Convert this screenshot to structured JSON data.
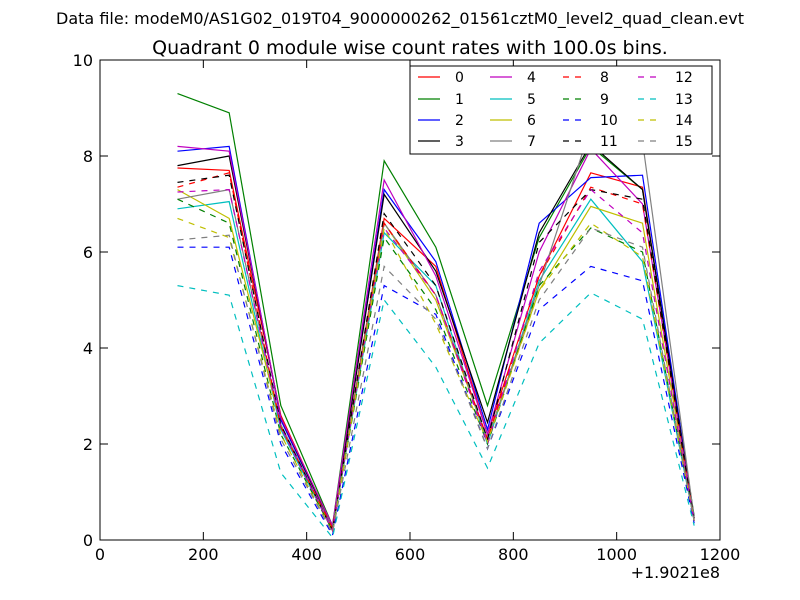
{
  "chart_data": {
    "type": "line",
    "suptitle": "Data file: modeM0/AS1G02_019T04_9000000262_01561cztM0_level2_quad_clean.evt",
    "title": "Quadrant 0 module wise count rates with 100.0s bins.",
    "xlabel": "",
    "ylabel": "",
    "x_offset_label": "+1.9021e8",
    "xlim": [
      0,
      1200
    ],
    "ylim": [
      0,
      10
    ],
    "xticks": [
      "0",
      "200",
      "400",
      "600",
      "800",
      "1000",
      "1200"
    ],
    "yticks": [
      "0",
      "2",
      "4",
      "6",
      "8",
      "10"
    ],
    "grid": false,
    "legend_position": "top-right",
    "x": [
      150,
      250,
      350,
      450,
      550,
      650,
      750,
      850,
      950,
      1050,
      1150
    ],
    "series": [
      {
        "name": "0",
        "color": "#ff0000",
        "style": "solid",
        "values": [
          7.75,
          7.7,
          2.6,
          0.25,
          6.7,
          5.7,
          2.2,
          5.5,
          7.65,
          7.35,
          0.4
        ]
      },
      {
        "name": "1",
        "color": "#008000",
        "style": "solid",
        "values": [
          9.3,
          8.9,
          2.8,
          0.3,
          7.9,
          6.1,
          2.8,
          6.3,
          8.2,
          7.3,
          0.5
        ]
      },
      {
        "name": "2",
        "color": "#0000ff",
        "style": "solid",
        "values": [
          8.1,
          8.2,
          2.5,
          0.25,
          7.3,
          5.8,
          2.3,
          6.6,
          7.55,
          7.6,
          0.45
        ]
      },
      {
        "name": "3",
        "color": "#000000",
        "style": "solid",
        "values": [
          7.8,
          8.0,
          2.55,
          0.25,
          7.2,
          5.6,
          2.45,
          6.4,
          8.25,
          7.3,
          0.45
        ]
      },
      {
        "name": "4",
        "color": "#bf00bf",
        "style": "solid",
        "values": [
          8.2,
          8.1,
          2.55,
          0.3,
          7.5,
          5.5,
          2.2,
          6.0,
          8.15,
          7.0,
          0.45
        ]
      },
      {
        "name": "5",
        "color": "#00bfbf",
        "style": "solid",
        "values": [
          6.9,
          7.05,
          2.3,
          0.2,
          6.4,
          5.3,
          2.0,
          5.4,
          7.1,
          5.8,
          0.4
        ]
      },
      {
        "name": "6",
        "color": "#bfbf00",
        "style": "solid",
        "values": [
          7.3,
          6.7,
          2.4,
          0.2,
          6.6,
          5.0,
          2.1,
          5.2,
          6.95,
          6.6,
          0.4
        ]
      },
      {
        "name": "7",
        "color": "#808080",
        "style": "solid",
        "values": [
          7.1,
          7.3,
          2.4,
          0.25,
          6.6,
          5.1,
          2.1,
          5.3,
          8.6,
          8.3,
          0.45
        ]
      },
      {
        "name": "8",
        "color": "#ff0000",
        "style": "dashed",
        "values": [
          7.35,
          7.65,
          2.35,
          0.25,
          6.6,
          5.1,
          2.1,
          5.5,
          7.35,
          7.0,
          0.4
        ]
      },
      {
        "name": "9",
        "color": "#008000",
        "style": "dashed",
        "values": [
          7.1,
          6.6,
          2.2,
          0.2,
          6.3,
          4.8,
          2.0,
          5.3,
          6.5,
          6.0,
          0.4
        ]
      },
      {
        "name": "10",
        "color": "#0000ff",
        "style": "dashed",
        "values": [
          6.1,
          6.1,
          2.0,
          0.1,
          5.3,
          4.7,
          1.9,
          4.8,
          5.7,
          5.4,
          0.35
        ]
      },
      {
        "name": "11",
        "color": "#000000",
        "style": "dashed",
        "values": [
          7.45,
          7.6,
          2.4,
          0.2,
          6.8,
          5.3,
          2.1,
          6.2,
          7.3,
          7.1,
          0.4
        ]
      },
      {
        "name": "12",
        "color": "#bf00bf",
        "style": "dashed",
        "values": [
          7.25,
          7.3,
          2.35,
          0.2,
          6.5,
          5.1,
          2.0,
          5.6,
          7.3,
          6.4,
          0.4
        ]
      },
      {
        "name": "13",
        "color": "#00bfbf",
        "style": "dashed",
        "values": [
          5.3,
          5.1,
          1.4,
          0.05,
          5.0,
          3.6,
          1.5,
          4.1,
          5.15,
          4.6,
          0.3
        ]
      },
      {
        "name": "14",
        "color": "#bfbf00",
        "style": "dashed",
        "values": [
          6.7,
          6.3,
          2.2,
          0.15,
          6.5,
          4.5,
          2.05,
          5.2,
          6.6,
          5.9,
          0.4
        ]
      },
      {
        "name": "15",
        "color": "#808080",
        "style": "dashed",
        "values": [
          6.25,
          6.35,
          2.1,
          0.15,
          5.7,
          4.6,
          1.9,
          5.0,
          6.5,
          6.1,
          0.4
        ]
      }
    ]
  }
}
